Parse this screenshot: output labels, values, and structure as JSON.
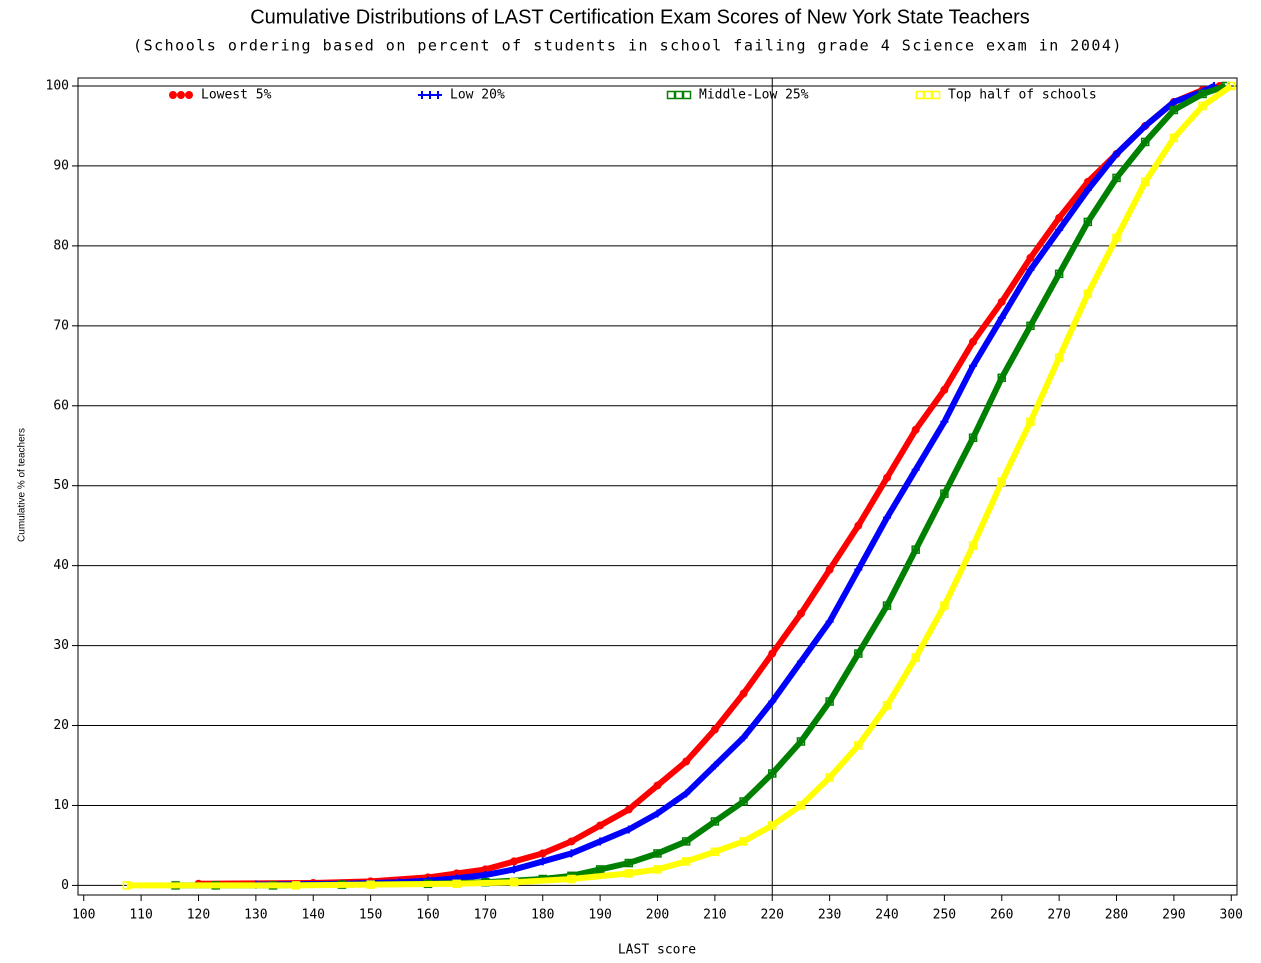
{
  "chart_data": {
    "type": "line",
    "title": "Cumulative Distributions of LAST Certification Exam Scores of New York State Teachers",
    "subtitle": "(Schools ordering based on percent of students in school failing grade 4 Science exam in 2004)",
    "x_label": "LAST score",
    "y_label": "Cumulative % of teachers",
    "xlim": [
      99,
      301
    ],
    "ylim": [
      -1.2,
      101
    ],
    "xticks": [
      100,
      110,
      120,
      130,
      140,
      150,
      160,
      170,
      180,
      190,
      200,
      210,
      220,
      230,
      240,
      250,
      260,
      270,
      280,
      290,
      300
    ],
    "yticks": [
      0,
      10,
      20,
      30,
      40,
      50,
      60,
      70,
      80,
      90,
      100
    ],
    "grid": true,
    "reference_x": 220,
    "legend": "top",
    "series": [
      {
        "name": "Lowest 5%",
        "color": "#ff0000",
        "marker": "dot",
        "x": [
          120,
          140,
          150,
          160,
          165,
          170,
          175,
          180,
          185,
          190,
          195,
          200,
          205,
          210,
          215,
          220,
          225,
          230,
          235,
          240,
          245,
          250,
          255,
          260,
          265,
          270,
          275,
          280,
          285,
          290,
          295,
          298
        ],
        "values": [
          0.2,
          0.3,
          0.5,
          1,
          1.5,
          2,
          3,
          4,
          5.5,
          7.5,
          9.5,
          12.5,
          15.5,
          19.5,
          24,
          29,
          34,
          39.5,
          45,
          51,
          57,
          62,
          68,
          73,
          78.5,
          83.5,
          88,
          91.5,
          95,
          98,
          99.5,
          100
        ]
      },
      {
        "name": "Low 20%",
        "color": "#0000ff",
        "marker": "plus",
        "x": [
          130,
          145,
          155,
          160,
          165,
          170,
          175,
          180,
          185,
          190,
          195,
          200,
          205,
          210,
          215,
          220,
          225,
          230,
          235,
          240,
          245,
          250,
          255,
          260,
          265,
          270,
          275,
          280,
          285,
          290,
          295,
          297
        ],
        "values": [
          0.1,
          0.2,
          0.4,
          0.6,
          0.9,
          1.3,
          2,
          3,
          4,
          5.5,
          7,
          9,
          11.5,
          15,
          18.5,
          23,
          28,
          33,
          39.5,
          46,
          52,
          58,
          65,
          71,
          77,
          82,
          87,
          91.5,
          95,
          98,
          99.3,
          100
        ]
      },
      {
        "name": "Middle-Low 25%",
        "color": "#008000",
        "marker": "square",
        "x": [
          116,
          123,
          133,
          145,
          160,
          170,
          180,
          185,
          190,
          195,
          200,
          205,
          210,
          215,
          220,
          225,
          230,
          235,
          240,
          245,
          250,
          255,
          260,
          265,
          270,
          275,
          280,
          285,
          290,
          295,
          299
        ],
        "values": [
          0,
          0,
          0,
          0.1,
          0.2,
          0.4,
          0.8,
          1.2,
          2,
          2.8,
          4,
          5.5,
          8,
          10.5,
          14,
          18,
          23,
          29,
          35,
          42,
          49,
          56,
          63.5,
          70,
          76.5,
          83,
          88.5,
          93,
          97,
          99,
          100
        ]
      },
      {
        "name": "Top half of schools",
        "color": "#ffff00",
        "marker": "square",
        "x": [
          107.5,
          137,
          150,
          165,
          175,
          185,
          195,
          200,
          205,
          210,
          215,
          220,
          225,
          230,
          235,
          240,
          245,
          250,
          255,
          260,
          265,
          270,
          275,
          280,
          285,
          290,
          295,
          300
        ],
        "values": [
          0,
          0,
          0.1,
          0.2,
          0.4,
          0.8,
          1.5,
          2,
          3,
          4.2,
          5.5,
          7.5,
          10,
          13.5,
          17.5,
          22.5,
          28.5,
          35,
          42.5,
          50.5,
          58,
          66,
          74,
          81,
          88,
          93.5,
          97.5,
          100
        ]
      }
    ]
  }
}
